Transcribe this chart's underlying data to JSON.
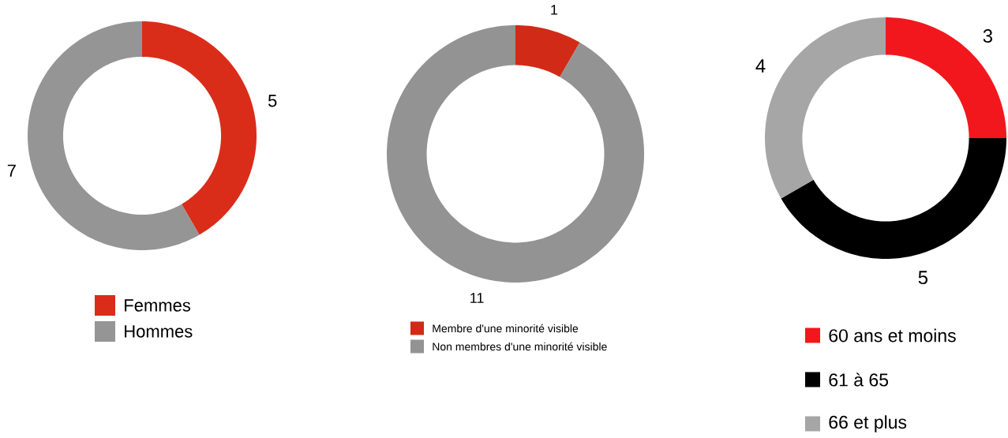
{
  "chart_data": [
    {
      "type": "donut",
      "categories": [
        "Femmes",
        "Hommes"
      ],
      "values": [
        5,
        7
      ],
      "colors": [
        "#d92d1a",
        "#959595"
      ],
      "data_labels": true,
      "legend": "bottom"
    },
    {
      "type": "donut",
      "categories": [
        "Membre d'une minorité visible",
        "Non membres d'une minorité visible"
      ],
      "values": [
        1,
        11
      ],
      "colors": [
        "#d12a17",
        "#939393"
      ],
      "data_labels": true,
      "legend": "bottom"
    },
    {
      "type": "donut",
      "categories": [
        "60 ans et moins",
        "61 à 65",
        "66 et plus"
      ],
      "values": [
        3,
        5,
        4
      ],
      "colors": [
        "#f2171c",
        "#000000",
        "#a6a6a6"
      ],
      "data_labels": true,
      "legend": "bottom"
    }
  ]
}
